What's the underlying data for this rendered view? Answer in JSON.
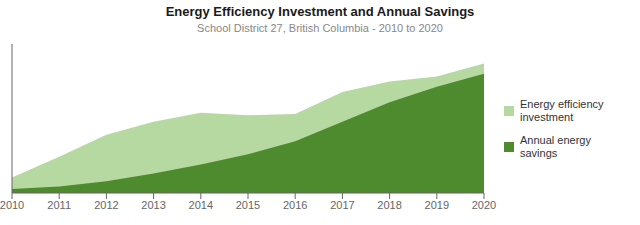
{
  "chart_data": {
    "type": "area",
    "title": "Energy Efficiency Investment and Annual Savings",
    "subtitle": "School District 27, British Columbia - 2010 to 2020",
    "x": [
      2010,
      2011,
      2012,
      2013,
      2014,
      2015,
      2016,
      2017,
      2018,
      2019,
      2020
    ],
    "series": [
      {
        "name": "Energy efficiency\ninvestment",
        "color": "#b5d9a0",
        "values": [
          1.2,
          2.8,
          4.5,
          5.5,
          6.2,
          6.0,
          6.1,
          7.8,
          8.6,
          9.0,
          10.0
        ]
      },
      {
        "name": "Annual energy\nsavings",
        "color": "#4e8a2e",
        "values": [
          0.3,
          0.5,
          0.9,
          1.5,
          2.2,
          3.0,
          4.0,
          5.5,
          7.0,
          8.2,
          9.2
        ]
      }
    ],
    "xlim": [
      2010,
      2020
    ],
    "xticks": [
      2010,
      2011,
      2012,
      2013,
      2014,
      2015,
      2016,
      2017,
      2018,
      2019,
      2020
    ],
    "ylim": [
      0,
      11.5
    ],
    "tick_labels": "x",
    "stacked": false,
    "grid": false,
    "legend": "right"
  }
}
